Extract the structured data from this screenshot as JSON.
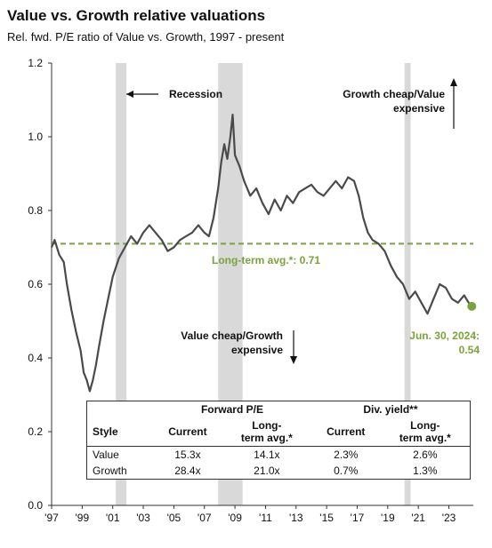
{
  "chart_data": {
    "type": "line",
    "title": "Value vs. Growth relative valuations",
    "subtitle": "Rel. fwd. P/E ratio of Value vs. Growth, 1997 - present",
    "xlabel": "",
    "ylabel": "",
    "ylim": [
      0,
      1.2
    ],
    "y_ticks": [
      "0.0",
      "0.2",
      "0.4",
      "0.6",
      "0.8",
      "1.0",
      "1.2"
    ],
    "x_ticks": [
      {
        "label": "'97",
        "year": 1997
      },
      {
        "label": "'99",
        "year": 1999
      },
      {
        "label": "'01",
        "year": 2001
      },
      {
        "label": "'03",
        "year": 2003
      },
      {
        "label": "'05",
        "year": 2005
      },
      {
        "label": "'07",
        "year": 2007
      },
      {
        "label": "'09",
        "year": 2009
      },
      {
        "label": "'11",
        "year": 2011
      },
      {
        "label": "'13",
        "year": 2013
      },
      {
        "label": "'15",
        "year": 2015
      },
      {
        "label": "'17",
        "year": 2017
      },
      {
        "label": "'19",
        "year": 2019
      },
      {
        "label": "'21",
        "year": 2021
      },
      {
        "label": "'23",
        "year": 2023
      }
    ],
    "xlim": [
      1997,
      2024.6
    ],
    "series": [
      {
        "color": "#4a4a4a",
        "points": [
          [
            1997.0,
            0.7
          ],
          [
            1997.2,
            0.72
          ],
          [
            1997.5,
            0.68
          ],
          [
            1997.8,
            0.66
          ],
          [
            1998.0,
            0.6
          ],
          [
            1998.3,
            0.53
          ],
          [
            1998.6,
            0.47
          ],
          [
            1998.9,
            0.42
          ],
          [
            1999.1,
            0.36
          ],
          [
            1999.3,
            0.34
          ],
          [
            1999.5,
            0.31
          ],
          [
            1999.7,
            0.34
          ],
          [
            1999.9,
            0.38
          ],
          [
            2000.1,
            0.43
          ],
          [
            2000.4,
            0.5
          ],
          [
            2000.7,
            0.56
          ],
          [
            2001.0,
            0.62
          ],
          [
            2001.4,
            0.67
          ],
          [
            2001.8,
            0.7
          ],
          [
            2002.2,
            0.73
          ],
          [
            2002.6,
            0.71
          ],
          [
            2003.0,
            0.74
          ],
          [
            2003.4,
            0.76
          ],
          [
            2003.8,
            0.74
          ],
          [
            2004.2,
            0.72
          ],
          [
            2004.6,
            0.69
          ],
          [
            2005.0,
            0.7
          ],
          [
            2005.4,
            0.72
          ],
          [
            2005.8,
            0.73
          ],
          [
            2006.2,
            0.74
          ],
          [
            2006.6,
            0.76
          ],
          [
            2007.0,
            0.74
          ],
          [
            2007.3,
            0.73
          ],
          [
            2007.6,
            0.78
          ],
          [
            2007.9,
            0.86
          ],
          [
            2008.1,
            0.93
          ],
          [
            2008.3,
            0.98
          ],
          [
            2008.5,
            0.94
          ],
          [
            2008.7,
            1.0
          ],
          [
            2008.85,
            1.06
          ],
          [
            2009.0,
            0.95
          ],
          [
            2009.3,
            0.92
          ],
          [
            2009.6,
            0.88
          ],
          [
            2010.0,
            0.84
          ],
          [
            2010.4,
            0.86
          ],
          [
            2010.8,
            0.82
          ],
          [
            2011.2,
            0.79
          ],
          [
            2011.6,
            0.83
          ],
          [
            2012.0,
            0.8
          ],
          [
            2012.4,
            0.84
          ],
          [
            2012.8,
            0.82
          ],
          [
            2013.2,
            0.85
          ],
          [
            2013.6,
            0.86
          ],
          [
            2014.0,
            0.87
          ],
          [
            2014.4,
            0.85
          ],
          [
            2014.8,
            0.84
          ],
          [
            2015.2,
            0.86
          ],
          [
            2015.6,
            0.88
          ],
          [
            2016.0,
            0.86
          ],
          [
            2016.4,
            0.89
          ],
          [
            2016.8,
            0.88
          ],
          [
            2017.1,
            0.84
          ],
          [
            2017.4,
            0.78
          ],
          [
            2017.7,
            0.74
          ],
          [
            2018.0,
            0.72
          ],
          [
            2018.4,
            0.71
          ],
          [
            2018.8,
            0.69
          ],
          [
            2019.2,
            0.65
          ],
          [
            2019.6,
            0.62
          ],
          [
            2020.0,
            0.6
          ],
          [
            2020.4,
            0.56
          ],
          [
            2020.8,
            0.58
          ],
          [
            2021.2,
            0.55
          ],
          [
            2021.6,
            0.52
          ],
          [
            2022.0,
            0.56
          ],
          [
            2022.4,
            0.6
          ],
          [
            2022.8,
            0.59
          ],
          [
            2023.2,
            0.56
          ],
          [
            2023.6,
            0.55
          ],
          [
            2024.0,
            0.57
          ],
          [
            2024.3,
            0.55
          ],
          [
            2024.5,
            0.54
          ]
        ]
      }
    ],
    "long_term_avg": {
      "value": 0.71,
      "label": "Long-term avg.*:  0.71",
      "color": "#7aa33a"
    },
    "recessions": [
      {
        "start": 2001.2,
        "end": 2001.9
      },
      {
        "start": 2007.9,
        "end": 2009.5
      },
      {
        "start": 2020.1,
        "end": 2020.5
      }
    ],
    "end_point": {
      "x": 2024.5,
      "y": 0.54,
      "color": "#7aa33a",
      "label_line1": "Jun. 30, 2024:",
      "label_line2": "0.54"
    },
    "annotations": {
      "recession": "Recession",
      "growth_cheap_line1": "Growth cheap/Value",
      "growth_cheap_line2": "expensive",
      "value_cheap_line1": "Value cheap/Growth",
      "value_cheap_line2": "expensive"
    },
    "grid": false
  },
  "table": {
    "group_forward_pe": "Forward P/E",
    "group_div_yield": "Div. yield**",
    "col_style": "Style",
    "col_current": "Current",
    "col_lt_line1": "Long-",
    "col_lt_line2": "term avg.*",
    "rows": [
      {
        "style": "Value",
        "pe_current": "15.3x",
        "pe_lt": "14.1x",
        "dy_current": "2.3%",
        "dy_lt": "2.6%"
      },
      {
        "style": "Growth",
        "pe_current": "28.4x",
        "pe_lt": "21.0x",
        "dy_current": "0.7%",
        "dy_lt": "1.3%"
      }
    ]
  }
}
